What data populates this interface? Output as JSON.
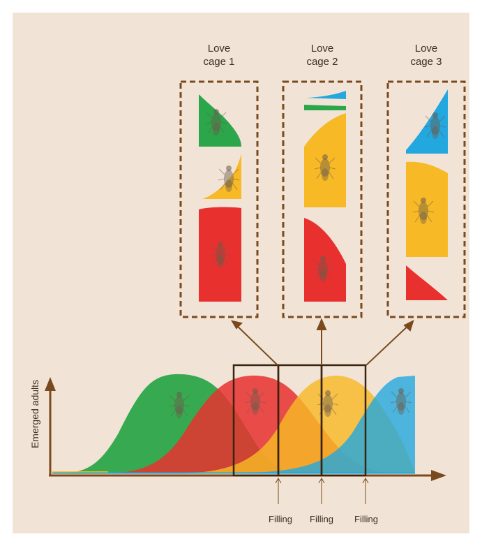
{
  "cages": [
    {
      "title": "Love\ncage 1",
      "line1": "Love",
      "line2": "cage 1"
    },
    {
      "title": "Love\ncage 2",
      "line1": "Love",
      "line2": "cage 2"
    },
    {
      "title": "Love\ncage 3",
      "line1": "Love",
      "line2": "cage 3"
    }
  ],
  "axis": {
    "ylabel": "Emerged adults"
  },
  "filling_labels": [
    "Filling",
    "Filling",
    "Filling"
  ],
  "colors": {
    "background": "#f1e4d6",
    "green": "#2ca64a",
    "yellow": "#f7b926",
    "red": "#e8312f",
    "blue": "#23a7df",
    "brown": "#7a4a1e"
  },
  "icons": [
    "fly-icon"
  ]
}
